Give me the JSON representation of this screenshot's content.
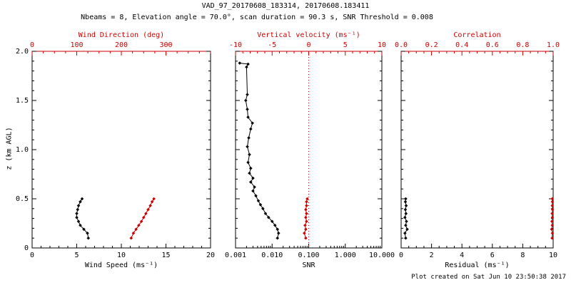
{
  "colors": {
    "primary": "#000000",
    "secondary": "#cc0000",
    "background": "#ffffff"
  },
  "footer": {
    "created_note": "Plot created on Sat Jun 10 23:50:38 2017"
  },
  "chart_data": {
    "type": "line",
    "title": "VAD_97_20170608_183314, 20170608.183411",
    "subtitle": "Nbeams = 8, Elevation angle = 70.0°, scan duration = 90.3 s, SNR Threshold = 0.008",
    "ylabel": "z (km AGL)",
    "ylim": [
      0,
      2
    ],
    "yticks": [
      0,
      0.5,
      1.0,
      1.5,
      2.0
    ],
    "ytick_labels": [
      "0",
      "0.5",
      "1.0",
      "1.5",
      "2.0"
    ],
    "yminor_step": 0.1,
    "grid": false,
    "legend_position": "none",
    "marker": "diamond",
    "panels": [
      {
        "id": "wind",
        "xlabel": "Wind Speed (ms⁻¹)",
        "xlim": [
          0,
          20
        ],
        "xticks": [
          0,
          5,
          10,
          15,
          20
        ],
        "xtick_labels": [
          "0",
          "5",
          "10",
          "15",
          "20"
        ],
        "xminor_step": 1,
        "top_label": "Wind Direction (deg)",
        "top_xlim": [
          0,
          400
        ],
        "top_ticks": [
          0,
          100,
          200,
          300
        ],
        "top_tick_labels": [
          "0",
          "100",
          "200",
          "300"
        ],
        "top_minor_step": 25,
        "series": [
          {
            "name": "wind-speed",
            "axis": "bottom",
            "color": "black",
            "points": [
              [
                6.3,
                0.1
              ],
              [
                6.2,
                0.15
              ],
              [
                5.8,
                0.19
              ],
              [
                5.4,
                0.23
              ],
              [
                5.2,
                0.27
              ],
              [
                5.0,
                0.31
              ],
              [
                5.0,
                0.35
              ],
              [
                5.1,
                0.39
              ],
              [
                5.2,
                0.43
              ],
              [
                5.4,
                0.47
              ],
              [
                5.6,
                0.5
              ]
            ]
          },
          {
            "name": "wind-direction",
            "axis": "top",
            "color": "red",
            "points": [
              [
                222,
                0.1
              ],
              [
                227,
                0.15
              ],
              [
                233,
                0.19
              ],
              [
                239,
                0.23
              ],
              [
                245,
                0.27
              ],
              [
                250,
                0.31
              ],
              [
                255,
                0.35
              ],
              [
                260,
                0.39
              ],
              [
                265,
                0.43
              ],
              [
                269,
                0.47
              ],
              [
                273,
                0.5
              ]
            ]
          }
        ]
      },
      {
        "id": "snr",
        "xlabel": "SNR",
        "xscale": "log",
        "xlim": [
          0.001,
          10
        ],
        "xticks": [
          0.001,
          0.01,
          0.1,
          1,
          10
        ],
        "xtick_labels": [
          "0.001",
          "0.010",
          "0.100",
          "1.000",
          "10.000"
        ],
        "top_label": "Vertical velocity (ms⁻¹)",
        "top_xlim": [
          -10,
          10
        ],
        "top_ticks": [
          -10,
          -5,
          0,
          5,
          10
        ],
        "top_tick_labels": [
          "-10",
          "-5",
          "0",
          "5",
          "10"
        ],
        "top_minor_step": 1,
        "zero_line_top": 0,
        "series": [
          {
            "name": "snr",
            "axis": "bottom",
            "color": "black",
            "points": [
              [
                0.014,
                0.1
              ],
              [
                0.015,
                0.15
              ],
              [
                0.014,
                0.19
              ],
              [
                0.012,
                0.23
              ],
              [
                0.01,
                0.27
              ],
              [
                0.008,
                0.31
              ],
              [
                0.0066,
                0.35
              ],
              [
                0.0056,
                0.4
              ],
              [
                0.0048,
                0.44
              ],
              [
                0.0042,
                0.48
              ],
              [
                0.0036,
                0.53
              ],
              [
                0.003,
                0.58
              ],
              [
                0.0033,
                0.62
              ],
              [
                0.0026,
                0.67
              ],
              [
                0.003,
                0.71
              ],
              [
                0.0024,
                0.76
              ],
              [
                0.0026,
                0.81
              ],
              [
                0.0022,
                0.87
              ],
              [
                0.0024,
                0.95
              ],
              [
                0.0021,
                1.03
              ],
              [
                0.0023,
                1.12
              ],
              [
                0.0026,
                1.21
              ],
              [
                0.0029,
                1.27
              ],
              [
                0.0022,
                1.33
              ],
              [
                0.0021,
                1.41
              ],
              [
                0.0019,
                1.5
              ],
              [
                0.0021,
                1.56
              ],
              [
                0.002,
                1.84
              ],
              [
                0.0022,
                1.87
              ],
              [
                0.0013,
                1.88
              ]
            ]
          },
          {
            "name": "vertical-velocity",
            "axis": "top",
            "color": "red",
            "points": [
              [
                -0.4,
                0.1
              ],
              [
                -0.6,
                0.15
              ],
              [
                -0.4,
                0.19
              ],
              [
                -0.5,
                0.23
              ],
              [
                -0.3,
                0.27
              ],
              [
                -0.4,
                0.31
              ],
              [
                -0.3,
                0.35
              ],
              [
                -0.4,
                0.39
              ],
              [
                -0.3,
                0.43
              ],
              [
                -0.3,
                0.47
              ],
              [
                -0.2,
                0.5
              ]
            ]
          }
        ]
      },
      {
        "id": "residual",
        "xlabel": "Residual (ms⁻¹)",
        "xlim": [
          0,
          10
        ],
        "xticks": [
          0,
          2,
          4,
          6,
          8,
          10
        ],
        "xtick_labels": [
          "0",
          "2",
          "4",
          "6",
          "8",
          "10"
        ],
        "xminor_step": 0.5,
        "top_label": "Correlation",
        "top_xlim": [
          0,
          1
        ],
        "top_ticks": [
          0,
          0.2,
          0.4,
          0.6,
          0.8,
          1
        ],
        "top_tick_labels": [
          "0.0",
          "0.2",
          "0.4",
          "0.6",
          "0.8",
          "1.0"
        ],
        "top_minor_step": 0.05,
        "series": [
          {
            "name": "residual",
            "axis": "bottom",
            "color": "black",
            "points": [
              [
                0.3,
                0.1
              ],
              [
                0.25,
                0.15
              ],
              [
                0.4,
                0.19
              ],
              [
                0.3,
                0.23
              ],
              [
                0.35,
                0.27
              ],
              [
                0.25,
                0.31
              ],
              [
                0.32,
                0.35
              ],
              [
                0.28,
                0.39
              ],
              [
                0.33,
                0.43
              ],
              [
                0.28,
                0.47
              ],
              [
                0.3,
                0.5
              ]
            ]
          },
          {
            "name": "correlation",
            "axis": "top",
            "color": "red",
            "points": [
              [
                0.993,
                0.1
              ],
              [
                0.995,
                0.15
              ],
              [
                0.99,
                0.19
              ],
              [
                0.994,
                0.23
              ],
              [
                0.992,
                0.27
              ],
              [
                0.995,
                0.31
              ],
              [
                0.993,
                0.35
              ],
              [
                0.996,
                0.39
              ],
              [
                0.994,
                0.43
              ],
              [
                0.995,
                0.47
              ],
              [
                0.994,
                0.5
              ]
            ]
          }
        ]
      }
    ]
  }
}
